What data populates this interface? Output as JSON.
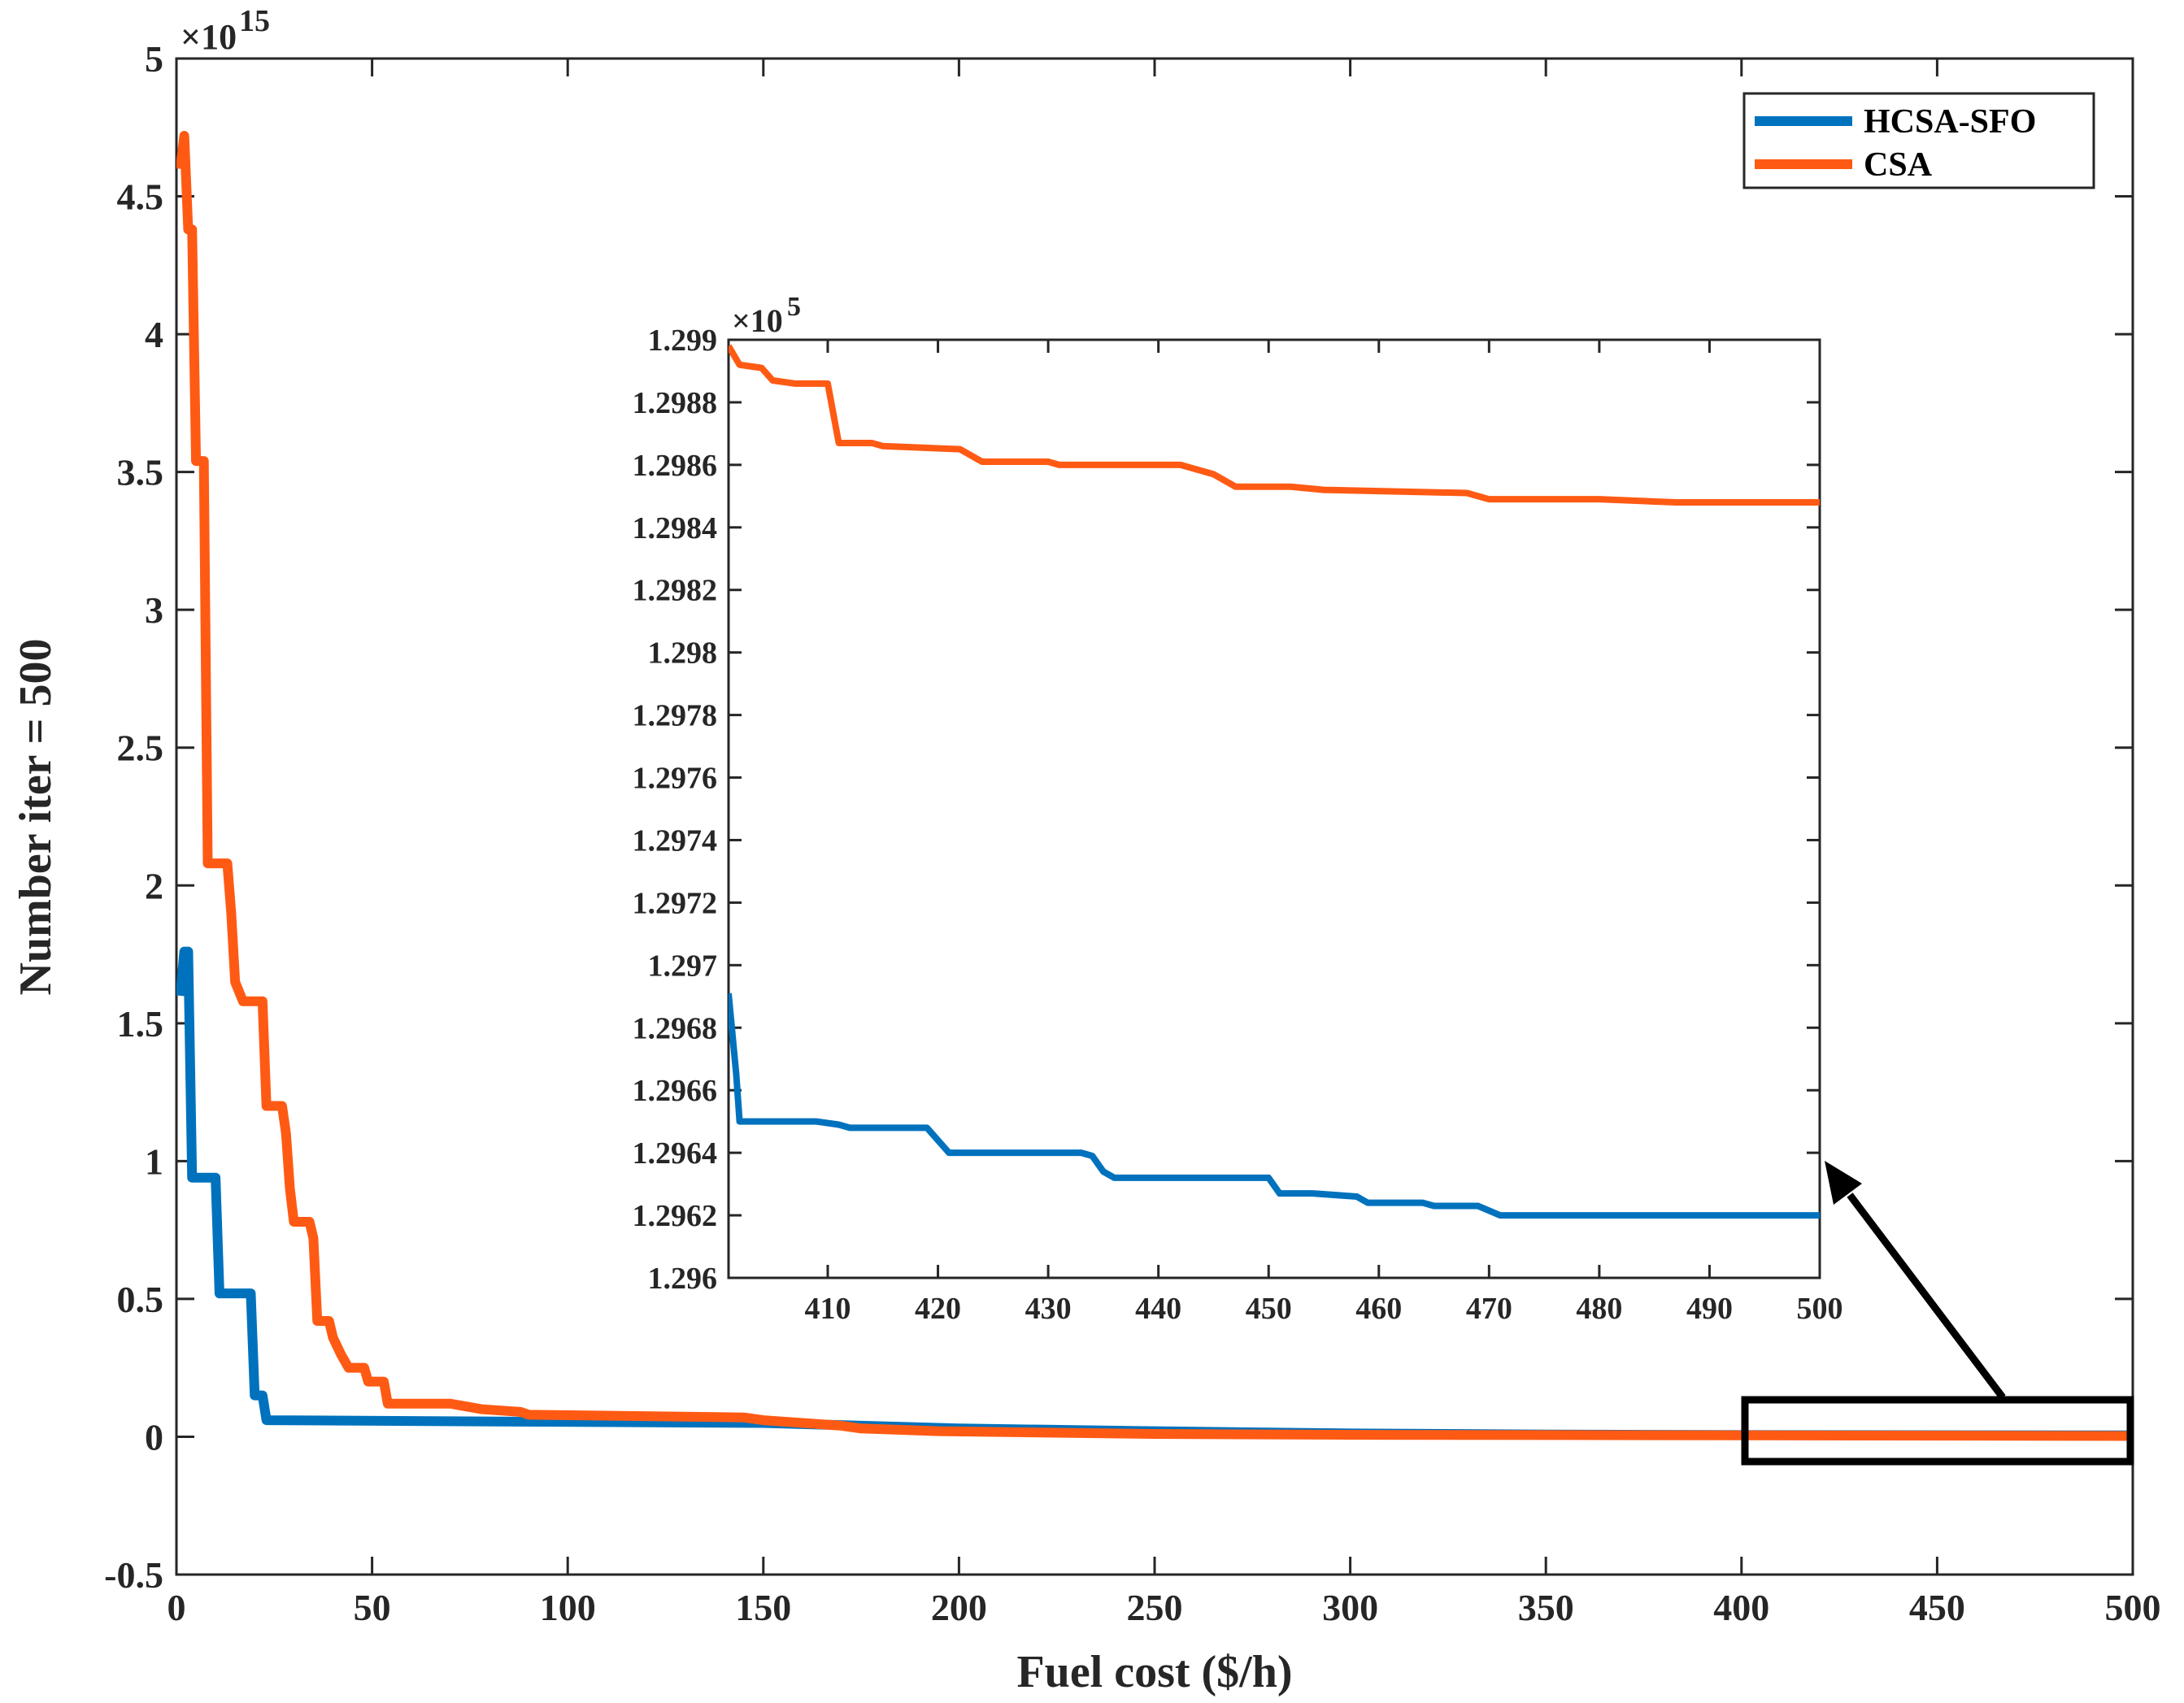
{
  "colors": {
    "series_blue": "#0072BD",
    "series_orange": "#FF5A14",
    "axis": "#262626",
    "annotation": "#000000"
  },
  "chart_data": [
    {
      "type": "line",
      "panel": "main",
      "title": "",
      "xlabel": "Fuel cost ($/h)",
      "ylabel": "Number iter = 500",
      "xlim": [
        0,
        500
      ],
      "ylim": [
        -0.5,
        5
      ],
      "y_multiplier": "×10",
      "y_exponent": "15",
      "xticks": [
        "0",
        "50",
        "100",
        "150",
        "200",
        "250",
        "300",
        "350",
        "400",
        "450",
        "500"
      ],
      "yticks": [
        "-0.5",
        "0",
        "0.5",
        "1",
        "1.5",
        "2",
        "2.5",
        "3",
        "3.5",
        "4",
        "4.5",
        "5"
      ],
      "legend": {
        "location": "top-right",
        "entries": [
          "HCSA-SFO",
          "CSA"
        ]
      },
      "series": [
        {
          "name": "HCSA-SFO",
          "points": [
            [
              1,
              1.6
            ],
            [
              2,
              1.76
            ],
            [
              3,
              1.76
            ],
            [
              4,
              0.94
            ],
            [
              5,
              0.94
            ],
            [
              9,
              0.94
            ],
            [
              10,
              0.94
            ],
            [
              11,
              0.52
            ],
            [
              15,
              0.52
            ],
            [
              19,
              0.52
            ],
            [
              20,
              0.15
            ],
            [
              21,
              0.15
            ],
            [
              22,
              0.15
            ],
            [
              23,
              0.06
            ],
            [
              150,
              0.05
            ],
            [
              175,
              0.04
            ],
            [
              200,
              0.03
            ],
            [
              250,
              0.02
            ],
            [
              300,
              0.012
            ],
            [
              350,
              0.008
            ],
            [
              400,
              0.006
            ],
            [
              500,
              0.005
            ]
          ]
        },
        {
          "name": "CSA",
          "points": [
            [
              1,
              4.6
            ],
            [
              2,
              4.72
            ],
            [
              3,
              4.38
            ],
            [
              4,
              4.38
            ],
            [
              5,
              3.54
            ],
            [
              7,
              3.54
            ],
            [
              8,
              2.08
            ],
            [
              12,
              2.08
            ],
            [
              13,
              2.08
            ],
            [
              14,
              1.9
            ],
            [
              15,
              1.65
            ],
            [
              17,
              1.58
            ],
            [
              22,
              1.58
            ],
            [
              23,
              1.2
            ],
            [
              27,
              1.2
            ],
            [
              28,
              1.1
            ],
            [
              29,
              0.9
            ],
            [
              30,
              0.78
            ],
            [
              34,
              0.78
            ],
            [
              35,
              0.72
            ],
            [
              36,
              0.42
            ],
            [
              39,
              0.42
            ],
            [
              40,
              0.36
            ],
            [
              42,
              0.3
            ],
            [
              44,
              0.25
            ],
            [
              48,
              0.25
            ],
            [
              49,
              0.2
            ],
            [
              53,
              0.2
            ],
            [
              54,
              0.12
            ],
            [
              70,
              0.12
            ],
            [
              78,
              0.1
            ],
            [
              88,
              0.09
            ],
            [
              90,
              0.08
            ],
            [
              145,
              0.07
            ],
            [
              150,
              0.06
            ],
            [
              170,
              0.04
            ],
            [
              175,
              0.03
            ],
            [
              195,
              0.02
            ],
            [
              250,
              0.01
            ],
            [
              300,
              0.007
            ],
            [
              500,
              0.003
            ]
          ]
        }
      ]
    },
    {
      "type": "line",
      "panel": "inset",
      "title": "",
      "xlabel": "",
      "ylabel": "",
      "xlim": [
        401,
        500
      ],
      "ylim": [
        1.296,
        1.299
      ],
      "y_multiplier": "×10",
      "y_exponent": "5",
      "xticks": [
        "410",
        "420",
        "430",
        "440",
        "450",
        "460",
        "470",
        "480",
        "490",
        "500"
      ],
      "yticks": [
        "1.296",
        "1.2962",
        "1.2964",
        "1.2966",
        "1.2968",
        "1.297",
        "1.2972",
        "1.2974",
        "1.2976",
        "1.2978",
        "1.298",
        "1.2982",
        "1.2984",
        "1.2986",
        "1.2988",
        "1.299"
      ],
      "annotation": "zoom of the region x = 400–500 near y = 0 (rectangle with arrow)",
      "series": [
        {
          "name": "HCSA-SFO",
          "points": [
            [
              401,
              1.29691
            ],
            [
              401.7,
              1.29665
            ],
            [
              402,
              1.2965
            ],
            [
              409,
              1.2965
            ],
            [
              411,
              1.29649
            ],
            [
              412,
              1.29648
            ],
            [
              419,
              1.29648
            ],
            [
              421,
              1.2964
            ],
            [
              433,
              1.2964
            ],
            [
              434,
              1.29639
            ],
            [
              435,
              1.29634
            ],
            [
              436,
              1.29632
            ],
            [
              450,
              1.29632
            ],
            [
              451,
              1.29627
            ],
            [
              454,
              1.29627
            ],
            [
              458,
              1.29626
            ],
            [
              459,
              1.29624
            ],
            [
              464,
              1.29624
            ],
            [
              465,
              1.29623
            ],
            [
              469,
              1.29623
            ],
            [
              471,
              1.2962
            ],
            [
              500,
              1.2962
            ]
          ]
        },
        {
          "name": "CSA",
          "points": [
            [
              401,
              1.29898
            ],
            [
              402,
              1.29892
            ],
            [
              404,
              1.29891
            ],
            [
              405,
              1.29887
            ],
            [
              407,
              1.29886
            ],
            [
              410,
              1.29886
            ],
            [
              411,
              1.29867
            ],
            [
              414,
              1.29867
            ],
            [
              415,
              1.29866
            ],
            [
              422,
              1.29865
            ],
            [
              424,
              1.29861
            ],
            [
              430,
              1.29861
            ],
            [
              431,
              1.2986
            ],
            [
              442,
              1.2986
            ],
            [
              443,
              1.29859
            ],
            [
              445,
              1.29857
            ],
            [
              447,
              1.29853
            ],
            [
              452,
              1.29853
            ],
            [
              455,
              1.29852
            ],
            [
              468,
              1.29851
            ],
            [
              470,
              1.29849
            ],
            [
              480,
              1.29849
            ],
            [
              487,
              1.29848
            ],
            [
              500,
              1.29848
            ]
          ]
        }
      ]
    }
  ]
}
